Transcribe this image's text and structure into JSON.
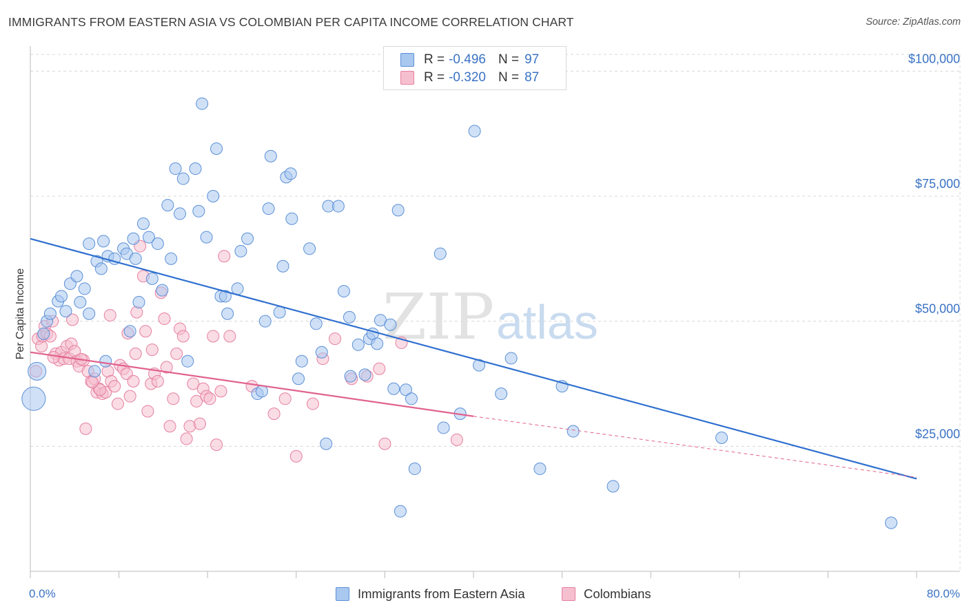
{
  "header": {
    "title": "IMMIGRANTS FROM EASTERN ASIA VS COLOMBIAN PER CAPITA INCOME CORRELATION CHART",
    "source": "Source: ZipAtlas.com"
  },
  "legend": {
    "rows": [
      {
        "r_label": "R =",
        "r_value": "-0.496",
        "n_label": "N =",
        "n_value": "97"
      },
      {
        "r_label": "R =",
        "r_value": "-0.320",
        "n_label": "N =",
        "n_value": "87"
      }
    ]
  },
  "watermark": {
    "zip": "ZIP",
    "atlas": "atlas"
  },
  "colors": {
    "blue_fill": "#a9c8f0",
    "blue_stroke": "#5b8fd6",
    "blue_line": "#2f6fcf",
    "pink_fill": "#f6bfd0",
    "pink_stroke": "#e57fa0",
    "pink_line": "#e0628e",
    "grid": "#d8d8d8",
    "tick_label": "#3a72c4"
  },
  "chart_data": {
    "type": "scatter",
    "title": "IMMIGRANTS FROM EASTERN ASIA VS COLOMBIAN PER CAPITA INCOME CORRELATION CHART",
    "xlabel": "",
    "ylabel": "Per Capita Income",
    "xlim": [
      0,
      80
    ],
    "ylim": [
      0,
      105000
    ],
    "x_tick_labels": [
      "0.0%",
      "80.0%"
    ],
    "y_ticks": [
      25000,
      50000,
      75000,
      100000
    ],
    "y_tick_labels": [
      "$25,000",
      "$50,000",
      "$75,000",
      "$100,000"
    ],
    "grid": true,
    "legend_position": "top-center",
    "series": [
      {
        "name": "Immigrants from Eastern Asia",
        "color": "#5b8fd6",
        "r": -0.496,
        "n": 97,
        "trend": {
          "x0": 0,
          "y0": 66500,
          "x1": 80,
          "y1": 18500
        },
        "points": [
          [
            0.3,
            34500
          ],
          [
            0.6,
            40000
          ],
          [
            1.2,
            47500
          ],
          [
            1.5,
            50000
          ],
          [
            1.8,
            51500
          ],
          [
            2.5,
            54000
          ],
          [
            2.8,
            55000
          ],
          [
            3.2,
            52000
          ],
          [
            3.6,
            57500
          ],
          [
            4.2,
            59000
          ],
          [
            4.5,
            53800
          ],
          [
            4.9,
            56500
          ],
          [
            5.3,
            51500
          ],
          [
            5.3,
            65500
          ],
          [
            6.0,
            62000
          ],
          [
            6.4,
            60500
          ],
          [
            6.6,
            66000
          ],
          [
            7.0,
            63000
          ],
          [
            7.6,
            62500
          ],
          [
            8.4,
            64500
          ],
          [
            8.7,
            63500
          ],
          [
            9.3,
            66500
          ],
          [
            9.5,
            62500
          ],
          [
            9.8,
            53800
          ],
          [
            10.2,
            69500
          ],
          [
            10.7,
            66800
          ],
          [
            11.0,
            58500
          ],
          [
            11.5,
            65500
          ],
          [
            11.9,
            56200
          ],
          [
            12.4,
            73200
          ],
          [
            12.7,
            62500
          ],
          [
            13.1,
            80500
          ],
          [
            13.5,
            71500
          ],
          [
            13.8,
            78500
          ],
          [
            14.9,
            80500
          ],
          [
            15.2,
            72000
          ],
          [
            15.5,
            93500
          ],
          [
            15.9,
            66800
          ],
          [
            16.5,
            75000
          ],
          [
            16.8,
            84500
          ],
          [
            17.2,
            55000
          ],
          [
            17.6,
            55000
          ],
          [
            17.8,
            51500
          ],
          [
            18.7,
            56500
          ],
          [
            19.0,
            64000
          ],
          [
            19.6,
            66500
          ],
          [
            20.5,
            35500
          ],
          [
            20.9,
            36000
          ],
          [
            21.2,
            50000
          ],
          [
            21.5,
            72500
          ],
          [
            21.7,
            83000
          ],
          [
            22.5,
            51800
          ],
          [
            22.8,
            61000
          ],
          [
            23.1,
            78800
          ],
          [
            23.5,
            79500
          ],
          [
            23.6,
            70500
          ],
          [
            24.2,
            38500
          ],
          [
            24.5,
            42000
          ],
          [
            25.2,
            64500
          ],
          [
            25.8,
            49500
          ],
          [
            26.3,
            43800
          ],
          [
            26.7,
            25500
          ],
          [
            26.9,
            73000
          ],
          [
            27.8,
            73000
          ],
          [
            28.3,
            56000
          ],
          [
            28.8,
            50800
          ],
          [
            28.9,
            39000
          ],
          [
            29.6,
            45300
          ],
          [
            30.2,
            39300
          ],
          [
            30.6,
            46500
          ],
          [
            30.9,
            47500
          ],
          [
            31.3,
            45500
          ],
          [
            31.6,
            50200
          ],
          [
            32.5,
            49300
          ],
          [
            32.8,
            36500
          ],
          [
            33.2,
            72200
          ],
          [
            33.4,
            12000
          ],
          [
            33.9,
            36300
          ],
          [
            34.4,
            34500
          ],
          [
            34.7,
            20500
          ],
          [
            37.0,
            63500
          ],
          [
            37.3,
            28700
          ],
          [
            38.8,
            31500
          ],
          [
            40.1,
            88000
          ],
          [
            40.5,
            41200
          ],
          [
            42.5,
            35500
          ],
          [
            43.4,
            42600
          ],
          [
            46.0,
            20500
          ],
          [
            48.0,
            37000
          ],
          [
            49.0,
            28000
          ],
          [
            52.6,
            17000
          ],
          [
            62.4,
            26700
          ],
          [
            77.7,
            9700
          ],
          [
            5.8,
            40000
          ],
          [
            9.0,
            48000
          ],
          [
            14.2,
            42000
          ],
          [
            6.8,
            42000
          ]
        ]
      },
      {
        "name": "Colombians",
        "color": "#e57fa0",
        "r": -0.32,
        "n": 87,
        "trend": {
          "x0": 0,
          "y0": 43800,
          "x1": 40,
          "y1": 31000
        },
        "trend_dashed_to": {
          "x": 80,
          "y": 18800
        },
        "points": [
          [
            0.5,
            40000
          ],
          [
            0.7,
            46500
          ],
          [
            1.0,
            45000
          ],
          [
            1.1,
            47000
          ],
          [
            1.3,
            49000
          ],
          [
            1.5,
            47500
          ],
          [
            1.8,
            47000
          ],
          [
            2.0,
            50000
          ],
          [
            2.3,
            43500
          ],
          [
            2.6,
            42200
          ],
          [
            2.8,
            43800
          ],
          [
            3.0,
            42500
          ],
          [
            3.3,
            45000
          ],
          [
            3.5,
            42500
          ],
          [
            3.7,
            45500
          ],
          [
            4.0,
            44000
          ],
          [
            4.2,
            42000
          ],
          [
            4.4,
            41000
          ],
          [
            4.8,
            42200
          ],
          [
            5.0,
            28500
          ],
          [
            5.2,
            40000
          ],
          [
            5.5,
            38000
          ],
          [
            5.8,
            38500
          ],
          [
            6.0,
            35800
          ],
          [
            6.2,
            36500
          ],
          [
            6.5,
            35500
          ],
          [
            6.8,
            35800
          ],
          [
            7.0,
            40000
          ],
          [
            7.3,
            38000
          ],
          [
            7.6,
            37000
          ],
          [
            7.9,
            33500
          ],
          [
            8.1,
            41200
          ],
          [
            8.4,
            40500
          ],
          [
            8.7,
            39500
          ],
          [
            9.0,
            35000
          ],
          [
            9.3,
            38000
          ],
          [
            9.6,
            51800
          ],
          [
            9.9,
            65000
          ],
          [
            10.2,
            59000
          ],
          [
            10.4,
            48000
          ],
          [
            10.6,
            32000
          ],
          [
            10.9,
            37500
          ],
          [
            11.2,
            39500
          ],
          [
            11.5,
            38000
          ],
          [
            11.8,
            55700
          ],
          [
            12.1,
            50500
          ],
          [
            12.3,
            40800
          ],
          [
            12.6,
            29000
          ],
          [
            12.9,
            34500
          ],
          [
            13.2,
            43500
          ],
          [
            13.5,
            48500
          ],
          [
            13.8,
            47000
          ],
          [
            14.1,
            26500
          ],
          [
            14.4,
            29000
          ],
          [
            14.7,
            37500
          ],
          [
            15.0,
            34000
          ],
          [
            15.3,
            29500
          ],
          [
            15.6,
            36500
          ],
          [
            15.9,
            35000
          ],
          [
            16.2,
            34500
          ],
          [
            16.5,
            47000
          ],
          [
            16.8,
            25300
          ],
          [
            17.2,
            36000
          ],
          [
            17.5,
            63000
          ],
          [
            18.0,
            47000
          ],
          [
            20.0,
            37000
          ],
          [
            22.0,
            31500
          ],
          [
            23.0,
            34500
          ],
          [
            24.0,
            23000
          ],
          [
            25.5,
            33500
          ],
          [
            26.4,
            42500
          ],
          [
            27.5,
            46500
          ],
          [
            29.0,
            38500
          ],
          [
            30.4,
            39000
          ],
          [
            31.5,
            40500
          ],
          [
            32.0,
            25500
          ],
          [
            33.5,
            45700
          ],
          [
            38.5,
            26300
          ],
          [
            7.2,
            51200
          ],
          [
            3.8,
            50300
          ],
          [
            9.5,
            43500
          ],
          [
            2.1,
            42800
          ],
          [
            6.3,
            36300
          ],
          [
            8.8,
            47600
          ],
          [
            11.0,
            44300
          ],
          [
            5.6,
            37800
          ],
          [
            4.6,
            42400
          ]
        ]
      }
    ]
  },
  "x_axis": {
    "left_label": "0.0%",
    "right_label": "80.0%"
  },
  "y_axis": {
    "label": "Per Capita Income"
  },
  "bottom_legend": {
    "items": [
      "Immigrants from Eastern Asia",
      "Colombians"
    ]
  }
}
